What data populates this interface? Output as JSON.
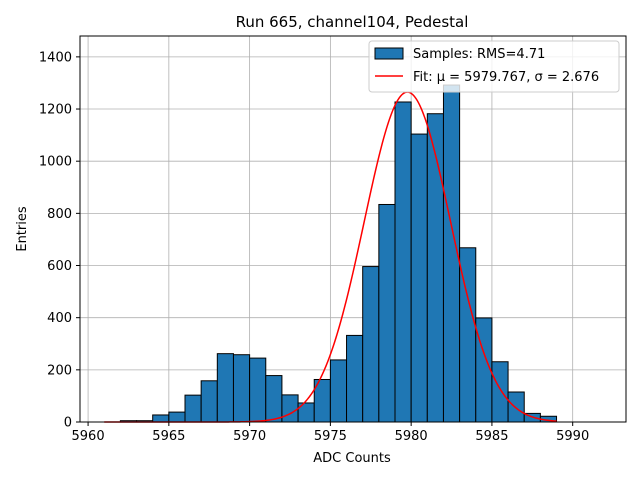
{
  "chart_data": {
    "type": "bar",
    "title": "Run 665, channel104, Pedestal",
    "xlabel": "ADC Counts",
    "ylabel": "Entries",
    "xlim": [
      5959.5,
      5993.3
    ],
    "ylim": [
      0,
      1480
    ],
    "xticks": [
      5960,
      5965,
      5970,
      5975,
      5980,
      5985,
      5990
    ],
    "yticks": [
      0,
      200,
      400,
      600,
      800,
      1000,
      1200,
      1400
    ],
    "grid": true,
    "legend_position": "top-right",
    "bin_width": 1,
    "bin_starts": [
      5962,
      5963,
      5964,
      5965,
      5966,
      5967,
      5968,
      5969,
      5970,
      5971,
      5972,
      5973,
      5974,
      5975,
      5976,
      5977,
      5978,
      5979,
      5980,
      5981,
      5982,
      5983,
      5984,
      5985,
      5986,
      5987,
      5988
    ],
    "values": [
      5,
      5,
      27,
      38,
      103,
      158,
      262,
      258,
      245,
      178,
      104,
      73,
      163,
      238,
      332,
      596,
      834,
      1227,
      1104,
      1182,
      1292,
      668,
      399,
      231,
      115,
      33,
      22
    ],
    "series": [
      {
        "name": "Samples: RMS=4.71",
        "kind": "histogram",
        "color": "#1f77b4"
      },
      {
        "name": "Fit: μ = 5979.767, σ = 2.676",
        "kind": "gaussian",
        "color": "#ff0000",
        "amplitude": 1265,
        "mean": 5979.767,
        "sigma": 2.676,
        "x_range": [
          5961,
          5989
        ]
      }
    ]
  }
}
